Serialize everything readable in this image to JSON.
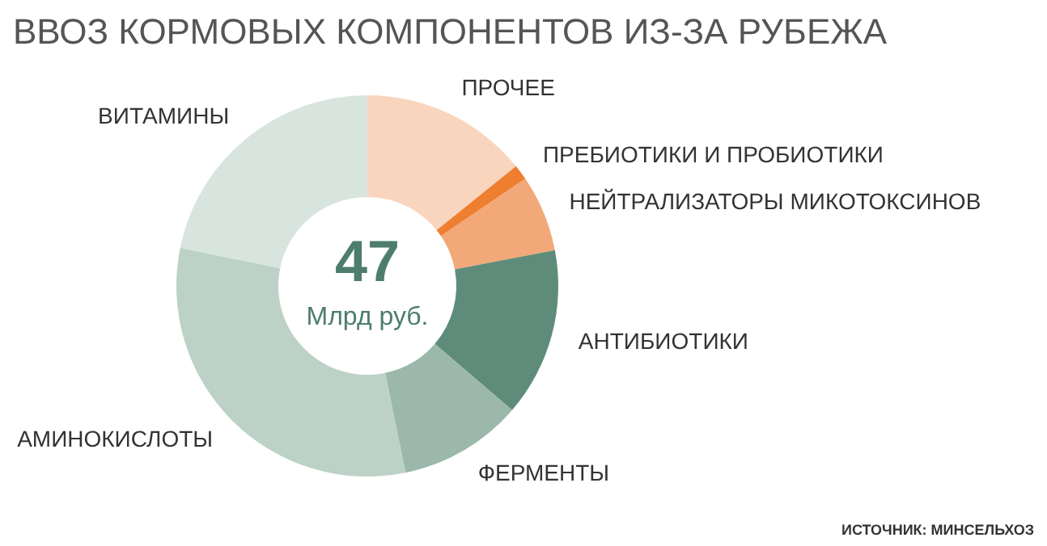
{
  "chart_data": {
    "type": "donut",
    "title": "ВВОЗ КОРМОВЫХ КОМПОНЕНТОВ ИЗ-ЗА РУБЕЖА",
    "categories": [
      "ПРОЧЕЕ",
      "ПРЕБИОТИКИ И ПРОБИОТИКИ",
      "НЕЙТРАЛИЗАТОРЫ МИКОТОКСИНОВ",
      "АНТИБИОТИКИ",
      "ФЕРМЕНТЫ",
      "АМИНОКИСЛОТЫ",
      "ВИТАМИНЫ"
    ],
    "values": [
      14.2,
      1.3,
      6.5,
      14.3,
      10.5,
      31.4,
      21.8
    ],
    "colors": [
      "#f9d5bd",
      "#ee7f30",
      "#f2a878",
      "#5f8c7a",
      "#9bb8ab",
      "#bcd2c7",
      "#d8e5de"
    ],
    "annotations": [
      "47",
      "Млрд руб.",
      "ИСТОЧНИК: МИНСЕЛЬХОЗ"
    ]
  }
}
